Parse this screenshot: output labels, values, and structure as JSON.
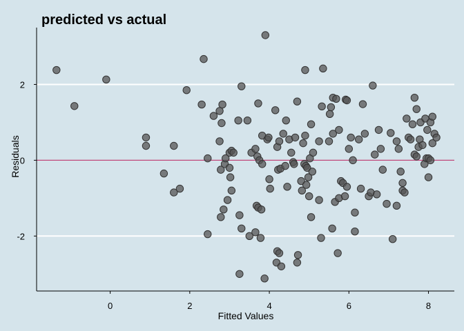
{
  "chart_data": {
    "type": "scatter",
    "title": "predicted vs actual",
    "xlabel": "Fitted Values",
    "ylabel": "Residuals",
    "xlim": [
      -1.85,
      8.65
    ],
    "ylim": [
      -3.45,
      3.5
    ],
    "xticks": [
      0,
      2,
      4,
      6,
      8
    ],
    "yticks": [
      -2,
      0,
      2
    ],
    "hlines": [
      2,
      -2
    ],
    "reference_line": 0,
    "grid": true,
    "colors": {
      "background": "#d5e4eb",
      "point": "#555555",
      "reference": "#c0477a",
      "gridline": "#ffffff"
    },
    "points": [
      [
        -1.35,
        2.38
      ],
      [
        -0.9,
        1.43
      ],
      [
        -0.1,
        2.13
      ],
      [
        0.9,
        0.6
      ],
      [
        0.9,
        0.38
      ],
      [
        1.35,
        -0.35
      ],
      [
        1.6,
        -0.85
      ],
      [
        1.6,
        0.38
      ],
      [
        1.75,
        -0.75
      ],
      [
        1.92,
        1.85
      ],
      [
        2.3,
        1.47
      ],
      [
        2.35,
        2.67
      ],
      [
        2.45,
        -1.95
      ],
      [
        2.45,
        0.05
      ],
      [
        2.6,
        1.17
      ],
      [
        2.75,
        1.3
      ],
      [
        2.75,
        0.5
      ],
      [
        2.78,
        -0.25
      ],
      [
        2.78,
        -1.5
      ],
      [
        2.8,
        0.98
      ],
      [
        2.82,
        1.47
      ],
      [
        2.85,
        -1.3
      ],
      [
        2.88,
        -0.1
      ],
      [
        2.9,
        0.05
      ],
      [
        2.95,
        -1.05
      ],
      [
        3.0,
        0.2
      ],
      [
        3.0,
        -0.2
      ],
      [
        3.02,
        -0.45
      ],
      [
        3.05,
        -0.8
      ],
      [
        3.05,
        0.25
      ],
      [
        3.1,
        0.2
      ],
      [
        3.22,
        1.05
      ],
      [
        3.25,
        -1.45
      ],
      [
        3.25,
        -3.0
      ],
      [
        3.3,
        1.95
      ],
      [
        3.3,
        -1.8
      ],
      [
        3.45,
        1.05
      ],
      [
        3.5,
        -2.0
      ],
      [
        3.55,
        0.2
      ],
      [
        3.65,
        -1.9
      ],
      [
        3.65,
        0.3
      ],
      [
        3.68,
        -1.2
      ],
      [
        3.7,
        0.1
      ],
      [
        3.72,
        1.5
      ],
      [
        3.72,
        -1.25
      ],
      [
        3.75,
        0.0
      ],
      [
        3.78,
        -2.05
      ],
      [
        3.8,
        -1.3
      ],
      [
        3.82,
        0.65
      ],
      [
        3.82,
        -0.1
      ],
      [
        3.88,
        -3.12
      ],
      [
        3.9,
        3.3
      ],
      [
        3.95,
        0.55
      ],
      [
        3.98,
        0.6
      ],
      [
        4.0,
        -0.5
      ],
      [
        4.02,
        -0.75
      ],
      [
        4.15,
        1.32
      ],
      [
        4.18,
        -2.7
      ],
      [
        4.2,
        0.35
      ],
      [
        4.2,
        -2.4
      ],
      [
        4.22,
        -0.25
      ],
      [
        4.25,
        0.5
      ],
      [
        4.25,
        -2.45
      ],
      [
        4.28,
        -0.22
      ],
      [
        4.3,
        -2.8
      ],
      [
        4.35,
        0.7
      ],
      [
        4.4,
        -0.15
      ],
      [
        4.42,
        1.05
      ],
      [
        4.45,
        -0.7
      ],
      [
        4.5,
        0.55
      ],
      [
        4.55,
        0.2
      ],
      [
        4.6,
        -0.05
      ],
      [
        4.62,
        -0.1
      ],
      [
        4.65,
        0.6
      ],
      [
        4.7,
        -2.7
      ],
      [
        4.7,
        1.55
      ],
      [
        4.72,
        -2.5
      ],
      [
        4.8,
        -0.55
      ],
      [
        4.82,
        -0.8
      ],
      [
        4.85,
        0.45
      ],
      [
        4.88,
        -0.1
      ],
      [
        4.9,
        2.38
      ],
      [
        4.9,
        0.65
      ],
      [
        4.92,
        -0.15
      ],
      [
        4.93,
        -0.65
      ],
      [
        4.95,
        -0.2
      ],
      [
        4.98,
        -0.45
      ],
      [
        5.0,
        -0.95
      ],
      [
        5.02,
        0.05
      ],
      [
        5.05,
        -1.5
      ],
      [
        5.05,
        0.95
      ],
      [
        5.08,
        -0.3
      ],
      [
        5.1,
        0.2
      ],
      [
        5.25,
        -1.05
      ],
      [
        5.25,
        0.5
      ],
      [
        5.3,
        -2.05
      ],
      [
        5.32,
        1.42
      ],
      [
        5.35,
        2.42
      ],
      [
        5.5,
        0.5
      ],
      [
        5.52,
        1.22
      ],
      [
        5.55,
        1.4
      ],
      [
        5.58,
        -1.8
      ],
      [
        5.6,
        0.7
      ],
      [
        5.6,
        1.65
      ],
      [
        5.65,
        -1.1
      ],
      [
        5.68,
        1.62
      ],
      [
        5.72,
        -2.45
      ],
      [
        5.75,
        -1.0
      ],
      [
        5.75,
        0.8
      ],
      [
        5.8,
        -0.55
      ],
      [
        5.85,
        -0.6
      ],
      [
        5.9,
        -0.95
      ],
      [
        5.92,
        1.6
      ],
      [
        5.95,
        1.58
      ],
      [
        5.95,
        -0.7
      ],
      [
        6.0,
        0.3
      ],
      [
        6.05,
        0.6
      ],
      [
        6.1,
        0.0
      ],
      [
        6.15,
        -1.38
      ],
      [
        6.15,
        -1.88
      ],
      [
        6.25,
        0.55
      ],
      [
        6.3,
        -0.75
      ],
      [
        6.35,
        1.48
      ],
      [
        6.4,
        0.7
      ],
      [
        6.5,
        -0.95
      ],
      [
        6.55,
        -0.85
      ],
      [
        6.6,
        1.97
      ],
      [
        6.65,
        0.15
      ],
      [
        6.7,
        -0.9
      ],
      [
        6.75,
        0.8
      ],
      [
        6.8,
        0.3
      ],
      [
        6.85,
        -0.25
      ],
      [
        6.95,
        -1.15
      ],
      [
        7.05,
        0.72
      ],
      [
        7.1,
        -2.08
      ],
      [
        7.2,
        0.5
      ],
      [
        7.2,
        -1.2
      ],
      [
        7.25,
        0.3
      ],
      [
        7.3,
        -0.3
      ],
      [
        7.35,
        -0.6
      ],
      [
        7.35,
        -0.8
      ],
      [
        7.4,
        -0.85
      ],
      [
        7.45,
        1.1
      ],
      [
        7.5,
        0.6
      ],
      [
        7.55,
        0.55
      ],
      [
        7.6,
        0.95
      ],
      [
        7.65,
        1.65
      ],
      [
        7.65,
        0.15
      ],
      [
        7.7,
        0.1
      ],
      [
        7.7,
        1.35
      ],
      [
        7.75,
        0.35
      ],
      [
        7.78,
        0.55
      ],
      [
        7.8,
        1.0
      ],
      [
        7.85,
        0.4
      ],
      [
        7.9,
        -0.1
      ],
      [
        7.92,
        1.1
      ],
      [
        7.95,
        0.05
      ],
      [
        7.97,
        0.8
      ],
      [
        8.0,
        -0.45
      ],
      [
        8.0,
        0.05
      ],
      [
        8.05,
        1.0
      ],
      [
        8.05,
        0.0
      ],
      [
        8.1,
        0.45
      ],
      [
        8.1,
        1.15
      ],
      [
        8.15,
        0.7
      ],
      [
        8.2,
        0.6
      ]
    ]
  }
}
